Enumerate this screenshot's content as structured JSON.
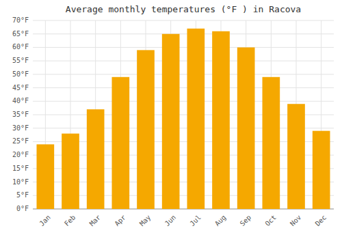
{
  "chart_data": {
    "type": "bar",
    "title": "Average monthly temperatures (°F ) in Racova",
    "categories": [
      "Jan",
      "Feb",
      "Mar",
      "Apr",
      "May",
      "Jun",
      "Jul",
      "Aug",
      "Sep",
      "Oct",
      "Nov",
      "Dec"
    ],
    "values": [
      24,
      28,
      37,
      49,
      59,
      65,
      67,
      66,
      60,
      49,
      39,
      29
    ],
    "color": "#F5A800",
    "ylim": [
      0,
      70
    ],
    "yticks": [
      {
        "value": 0,
        "label": "0°F"
      },
      {
        "value": 5,
        "label": "5°F"
      },
      {
        "value": 10,
        "label": "10°F"
      },
      {
        "value": 15,
        "label": "15°F"
      },
      {
        "value": 20,
        "label": "20°F"
      },
      {
        "value": 25,
        "label": "25°F"
      },
      {
        "value": 30,
        "label": "30°F"
      },
      {
        "value": 35,
        "label": "35°F"
      },
      {
        "value": 40,
        "label": "40°F"
      },
      {
        "value": 45,
        "label": "45°F"
      },
      {
        "value": 50,
        "label": "50°F"
      },
      {
        "value": 55,
        "label": "55°F"
      },
      {
        "value": 60,
        "label": "60°F"
      },
      {
        "value": 65,
        "label": "65°F"
      },
      {
        "value": 70,
        "label": "70°F"
      }
    ],
    "grid": true
  }
}
